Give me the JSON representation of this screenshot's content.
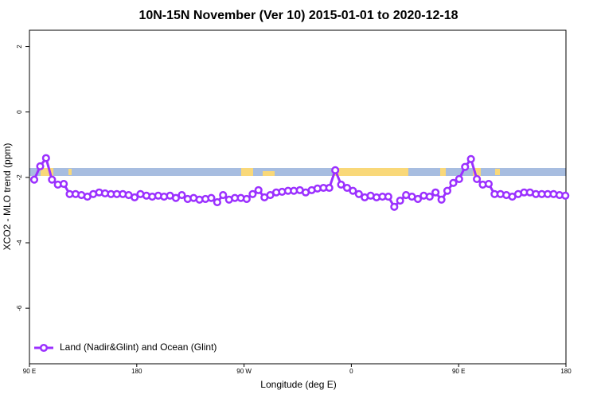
{
  "chart_data": {
    "type": "line",
    "title": "10N-15N November (Ver 10)   2015-01-01 to 2020-12-18",
    "xlabel": "Longitude (deg E)",
    "ylabel": "XCO2 - MLO trend (ppm)",
    "xlim": [
      90,
      540
    ],
    "ylim": [
      -7.7,
      2.5
    ],
    "xticks": [
      {
        "value": 90,
        "label": "90 E"
      },
      {
        "value": 180,
        "label": "180"
      },
      {
        "value": 270,
        "label": "90 W"
      },
      {
        "value": 360,
        "label": "0"
      },
      {
        "value": 450,
        "label": "90 E"
      },
      {
        "value": 540,
        "label": "180"
      }
    ],
    "yticks": [
      -6,
      -4,
      -2,
      0,
      2
    ],
    "legend": "bottom-left",
    "x": [
      94,
      99,
      103.9,
      108.9,
      113.8,
      118.8,
      123.7,
      128.7,
      133.6,
      138.6,
      143.5,
      148.5,
      153.4,
      158.4,
      163.3,
      168.3,
      173.2,
      178.2,
      183.1,
      188.1,
      193,
      198,
      202.9,
      207.9,
      212.8,
      217.8,
      222.7,
      227.7,
      232.6,
      237.6,
      242.5,
      247.5,
      252.4,
      257.4,
      262.3,
      267.3,
      272.2,
      277.2,
      282.1,
      287.1,
      292,
      297,
      301.9,
      306.9,
      311.8,
      316.8,
      321.7,
      326.7,
      331.6,
      336.6,
      341.5,
      346.5,
      351.4,
      356.4,
      361.3,
      366.3,
      371.2,
      376.2,
      381.1,
      386.1,
      391,
      396,
      400.9,
      405.9,
      410.8,
      415.8,
      420.7,
      425.7,
      430.6,
      435.6,
      440.5,
      445.5,
      450.4,
      455.4,
      460.3,
      465.3,
      470.2,
      475.2,
      480.1,
      485.1,
      490,
      495,
      499.9,
      504.9,
      509.8,
      514.8,
      519.7,
      524.7,
      529.6,
      534.6,
      539.5
    ],
    "series": [
      {
        "name": "Land (Nadir&Glint) and Ocean (Glint)",
        "color": "#9b30ff",
        "values": [
          -2.07,
          -1.66,
          -1.41,
          -2.07,
          -2.22,
          -2.2,
          -2.51,
          -2.51,
          -2.54,
          -2.59,
          -2.51,
          -2.46,
          -2.49,
          -2.51,
          -2.51,
          -2.51,
          -2.54,
          -2.61,
          -2.51,
          -2.56,
          -2.59,
          -2.56,
          -2.59,
          -2.56,
          -2.63,
          -2.54,
          -2.66,
          -2.63,
          -2.68,
          -2.66,
          -2.63,
          -2.76,
          -2.54,
          -2.68,
          -2.63,
          -2.63,
          -2.66,
          -2.51,
          -2.39,
          -2.61,
          -2.54,
          -2.46,
          -2.44,
          -2.41,
          -2.41,
          -2.39,
          -2.46,
          -2.39,
          -2.34,
          -2.32,
          -2.32,
          -1.78,
          -2.22,
          -2.32,
          -2.41,
          -2.51,
          -2.61,
          -2.56,
          -2.61,
          -2.59,
          -2.59,
          -2.9,
          -2.71,
          -2.54,
          -2.59,
          -2.66,
          -2.56,
          -2.59,
          -2.46,
          -2.68,
          -2.41,
          -2.17,
          -2.05,
          -1.68,
          -1.44,
          -2.05,
          -2.22,
          -2.2,
          -2.51,
          -2.51,
          -2.54,
          -2.59,
          -2.51,
          -2.46,
          -2.46,
          -2.51,
          -2.51,
          -2.51,
          -2.51,
          -2.54,
          -2.56
        ]
      }
    ]
  }
}
